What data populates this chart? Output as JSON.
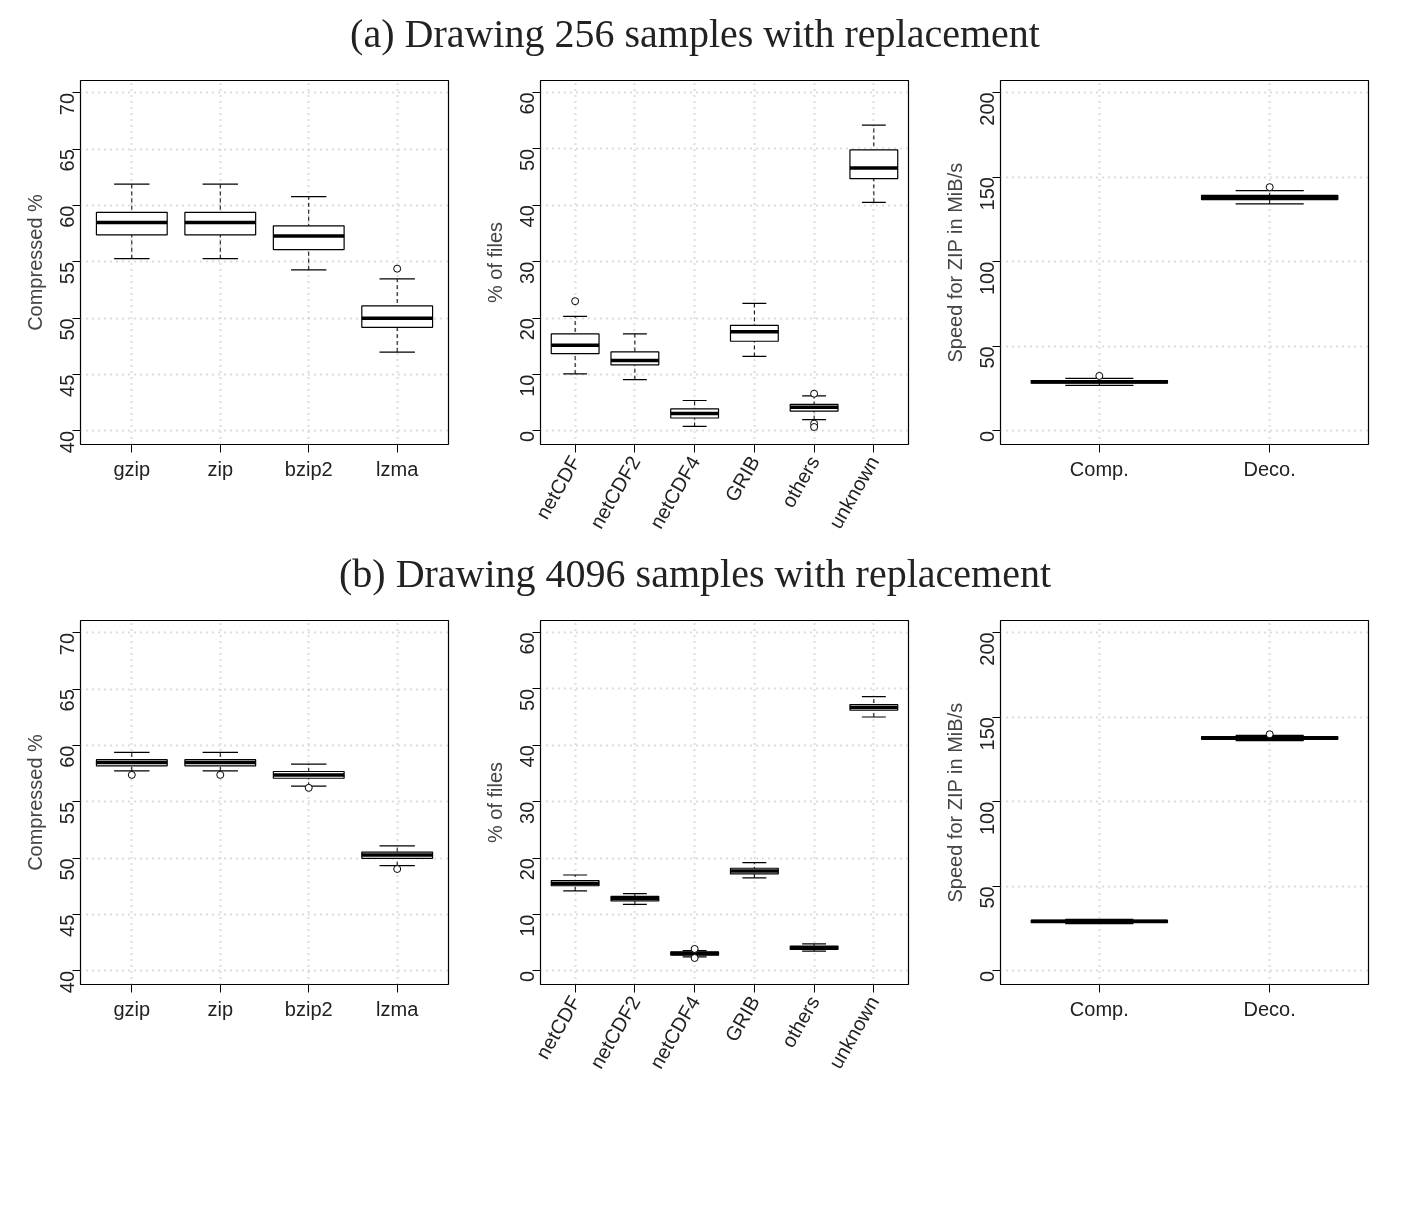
{
  "chart_data": [
    {
      "type": "box",
      "title": "(a) Drawing 256 samples with replacement",
      "ylabel": "Compressed %",
      "categories": [
        "gzip",
        "zip",
        "bzip2",
        "lzma"
      ],
      "ylim": [
        38.8,
        71.1
      ],
      "yticks": [
        40,
        45,
        50,
        55,
        60,
        65,
        70
      ],
      "grid": true,
      "boxes": [
        {
          "low": 55.3,
          "q1": 57.4,
          "median": 58.5,
          "q3": 59.4,
          "high": 61.9
        },
        {
          "low": 55.3,
          "q1": 57.4,
          "median": 58.5,
          "q3": 59.4,
          "high": 61.9
        },
        {
          "low": 54.3,
          "q1": 56.1,
          "median": 57.3,
          "q3": 58.2,
          "high": 60.8
        },
        {
          "low": 47.0,
          "q1": 49.2,
          "median": 50.0,
          "q3": 51.1,
          "high": 53.5,
          "outliers": [
            54.4
          ]
        }
      ]
    },
    {
      "type": "box",
      "ylabel": "% of files",
      "categories": [
        "netCDF",
        "netCDF2",
        "netCDF4",
        "GRIB",
        "others",
        "unknown"
      ],
      "ylim": [
        -2.4,
        62.1
      ],
      "yticks": [
        0,
        10,
        20,
        30,
        40,
        50,
        60
      ],
      "grid": true,
      "boxes": [
        {
          "low": 10.1,
          "q1": 13.7,
          "median": 15.2,
          "q3": 17.2,
          "high": 20.3,
          "outliers": [
            23.0
          ]
        },
        {
          "low": 9.1,
          "q1": 11.7,
          "median": 12.5,
          "q3": 14.0,
          "high": 17.2
        },
        {
          "low": 0.8,
          "q1": 2.3,
          "median": 3.1,
          "q3": 3.9,
          "high": 5.4
        },
        {
          "low": 13.2,
          "q1": 15.9,
          "median": 17.6,
          "q3": 18.7,
          "high": 22.6
        },
        {
          "low": 2.0,
          "q1": 3.5,
          "median": 4.2,
          "q3": 4.7,
          "high": 6.2,
          "outliers": [
            6.6,
            1.3,
            0.7
          ]
        },
        {
          "low": 40.5,
          "q1": 44.7,
          "median": 46.6,
          "q3": 49.8,
          "high": 54.2
        }
      ]
    },
    {
      "type": "box",
      "ylabel": "Speed for ZIP in MiB/s",
      "categories": [
        "Comp.",
        "Deco."
      ],
      "ylim": [
        -8,
        207
      ],
      "yticks": [
        0,
        50,
        100,
        150,
        200
      ],
      "grid": true,
      "boxes": [
        {
          "low": 26.9,
          "q1": 28.2,
          "median": 29.1,
          "q3": 29.8,
          "high": 31.1,
          "outliers": [
            32.5
          ]
        },
        {
          "low": 134.1,
          "q1": 136.6,
          "median": 137.8,
          "q3": 139.1,
          "high": 142.0,
          "outliers": [
            144.0
          ]
        }
      ]
    },
    {
      "type": "box",
      "title": "(b) Drawing 4096 samples with replacement",
      "ylabel": "Compressed %",
      "categories": [
        "gzip",
        "zip",
        "bzip2",
        "lzma"
      ],
      "ylim": [
        38.8,
        71.1
      ],
      "yticks": [
        40,
        45,
        50,
        55,
        60,
        65,
        70
      ],
      "grid": true,
      "boxes": [
        {
          "low": 57.75,
          "q1": 58.2,
          "median": 58.5,
          "q3": 58.75,
          "high": 59.4,
          "outliers": [
            57.4
          ]
        },
        {
          "low": 57.75,
          "q1": 58.2,
          "median": 58.5,
          "q3": 58.75,
          "high": 59.4,
          "outliers": [
            57.4
          ]
        },
        {
          "low": 56.4,
          "q1": 57.1,
          "median": 57.4,
          "q3": 57.7,
          "high": 58.35,
          "outliers": [
            56.25
          ]
        },
        {
          "low": 49.35,
          "q1": 50.0,
          "median": 50.3,
          "q3": 50.55,
          "high": 51.1,
          "outliers": [
            49.05
          ]
        }
      ]
    },
    {
      "type": "box",
      "ylabel": "% of files",
      "categories": [
        "netCDF",
        "netCDF2",
        "netCDF4",
        "GRIB",
        "others",
        "unknown"
      ],
      "ylim": [
        -2.4,
        62.1
      ],
      "yticks": [
        0,
        10,
        20,
        30,
        40,
        50,
        60
      ],
      "grid": true,
      "boxes": [
        {
          "low": 14.2,
          "q1": 15.1,
          "median": 15.5,
          "q3": 16.0,
          "high": 17.0
        },
        {
          "low": 11.8,
          "q1": 12.4,
          "median": 12.8,
          "q3": 13.2,
          "high": 13.7
        },
        {
          "low": 2.5,
          "q1": 2.8,
          "median": 3.1,
          "q3": 3.4,
          "high": 3.6,
          "outliers": [
            3.9,
            2.3
          ]
        },
        {
          "low": 16.5,
          "q1": 17.2,
          "median": 17.7,
          "q3": 18.2,
          "high": 19.2
        },
        {
          "low": 3.5,
          "q1": 3.8,
          "median": 4.1,
          "q3": 4.4,
          "high": 4.8
        },
        {
          "low": 45.0,
          "q1": 46.2,
          "median": 46.7,
          "q3": 47.2,
          "high": 48.6
        }
      ]
    },
    {
      "type": "box",
      "ylabel": "Speed for ZIP in MiB/s",
      "categories": [
        "Comp.",
        "Deco."
      ],
      "ylim": [
        -8,
        207
      ],
      "yticks": [
        0,
        50,
        100,
        150,
        200
      ],
      "grid": true,
      "boxes": [
        {
          "low": 28.0,
          "q1": 28.6,
          "median": 29.3,
          "q3": 29.9,
          "high": 30.5
        },
        {
          "low": 136.0,
          "q1": 136.8,
          "median": 137.6,
          "q3": 138.4,
          "high": 139.2,
          "outliers": [
            139.8
          ]
        }
      ]
    }
  ]
}
